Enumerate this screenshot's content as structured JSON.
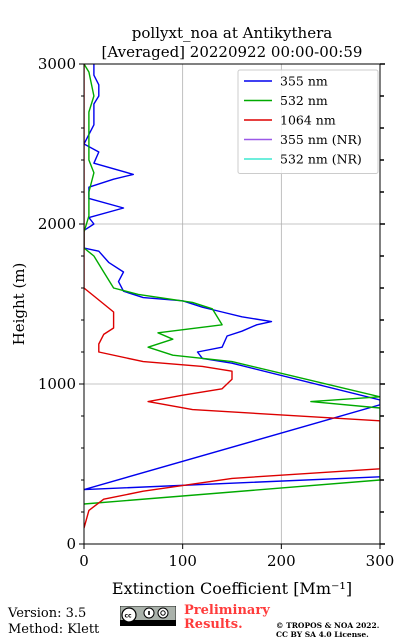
{
  "chart_data": {
    "type": "line",
    "title": "pollyxt_noa at Antikythera",
    "subtitle": "[Averaged] 20220922 00:00-00:59",
    "xlabel": "Extinction Coefficient [Mm⁻¹]",
    "ylabel": "Height (m)",
    "xlim": [
      0,
      300
    ],
    "ylim": [
      0,
      3000
    ],
    "x_ticks": [
      "0",
      "100",
      "200",
      "300"
    ],
    "y_ticks": [
      "0",
      "1000",
      "2000",
      "3000"
    ],
    "grid": true,
    "legend_position": "top-right",
    "series": [
      {
        "name": "355 nm",
        "color": "#0000ee",
        "points": [
          [
            300,
            420
          ],
          [
            0,
            340
          ],
          [
            300,
            870
          ],
          [
            300,
            900
          ],
          [
            150,
            1130
          ],
          [
            120,
            1160
          ],
          [
            115,
            1200
          ],
          [
            140,
            1230
          ],
          [
            145,
            1300
          ],
          [
            160,
            1330
          ],
          [
            175,
            1370
          ],
          [
            190,
            1390
          ],
          [
            160,
            1420
          ],
          [
            140,
            1450
          ],
          [
            120,
            1480
          ],
          [
            100,
            1520
          ],
          [
            60,
            1540
          ],
          [
            40,
            1580
          ],
          [
            35,
            1640
          ],
          [
            40,
            1700
          ],
          [
            25,
            1760
          ],
          [
            15,
            1830
          ],
          [
            0,
            1850
          ],
          [
            0,
            1960
          ],
          [
            10,
            2000
          ],
          [
            5,
            2040
          ],
          [
            40,
            2100
          ],
          [
            5,
            2160
          ],
          [
            5,
            2230
          ],
          [
            30,
            2280
          ],
          [
            50,
            2310
          ],
          [
            10,
            2380
          ],
          [
            15,
            2450
          ],
          [
            0,
            2500
          ],
          [
            10,
            2620
          ],
          [
            10,
            2750
          ],
          [
            15,
            2800
          ],
          [
            15,
            2870
          ],
          [
            10,
            2930
          ],
          [
            10,
            3000
          ]
        ]
      },
      {
        "name": "532 nm",
        "color": "#00aa00",
        "points": [
          [
            0,
            250
          ],
          [
            300,
            400
          ],
          [
            300,
            850
          ],
          [
            230,
            890
          ],
          [
            300,
            920
          ],
          [
            150,
            1140
          ],
          [
            90,
            1180
          ],
          [
            65,
            1230
          ],
          [
            90,
            1280
          ],
          [
            75,
            1320
          ],
          [
            140,
            1370
          ],
          [
            135,
            1420
          ],
          [
            130,
            1470
          ],
          [
            110,
            1510
          ],
          [
            55,
            1560
          ],
          [
            30,
            1600
          ],
          [
            20,
            1700
          ],
          [
            10,
            1800
          ],
          [
            0,
            1850
          ],
          [
            0,
            1950
          ],
          [
            5,
            2050
          ],
          [
            5,
            2200
          ],
          [
            10,
            2320
          ],
          [
            5,
            2400
          ],
          [
            5,
            2600
          ],
          [
            5,
            2700
          ],
          [
            10,
            2800
          ],
          [
            5,
            2950
          ],
          [
            0,
            3000
          ]
        ]
      },
      {
        "name": "1064 nm",
        "color": "#dd0000",
        "points": [
          [
            0,
            100
          ],
          [
            5,
            210
          ],
          [
            20,
            280
          ],
          [
            60,
            330
          ],
          [
            150,
            410
          ],
          [
            300,
            470
          ],
          [
            300,
            770
          ],
          [
            110,
            840
          ],
          [
            65,
            890
          ],
          [
            100,
            930
          ],
          [
            140,
            970
          ],
          [
            150,
            1030
          ],
          [
            150,
            1080
          ],
          [
            120,
            1110
          ],
          [
            60,
            1140
          ],
          [
            15,
            1200
          ],
          [
            15,
            1250
          ],
          [
            20,
            1310
          ],
          [
            30,
            1350
          ],
          [
            30,
            1450
          ],
          [
            10,
            1550
          ],
          [
            0,
            1600
          ],
          [
            0,
            3000
          ]
        ]
      },
      {
        "name": "355 nm (NR)",
        "color": "#9b59e8",
        "points": []
      },
      {
        "name": "532 nm (NR)",
        "color": "#3de8d0",
        "points": []
      }
    ]
  },
  "footer": {
    "version": "Version: 3.5",
    "method": "Method: Klett",
    "preliminary_line1": "Preliminary",
    "preliminary_line2": "Results.",
    "copyright_line1": "© TROPOS & NOA 2022.",
    "copyright_line2": "CC BY SA 4.0 License."
  }
}
